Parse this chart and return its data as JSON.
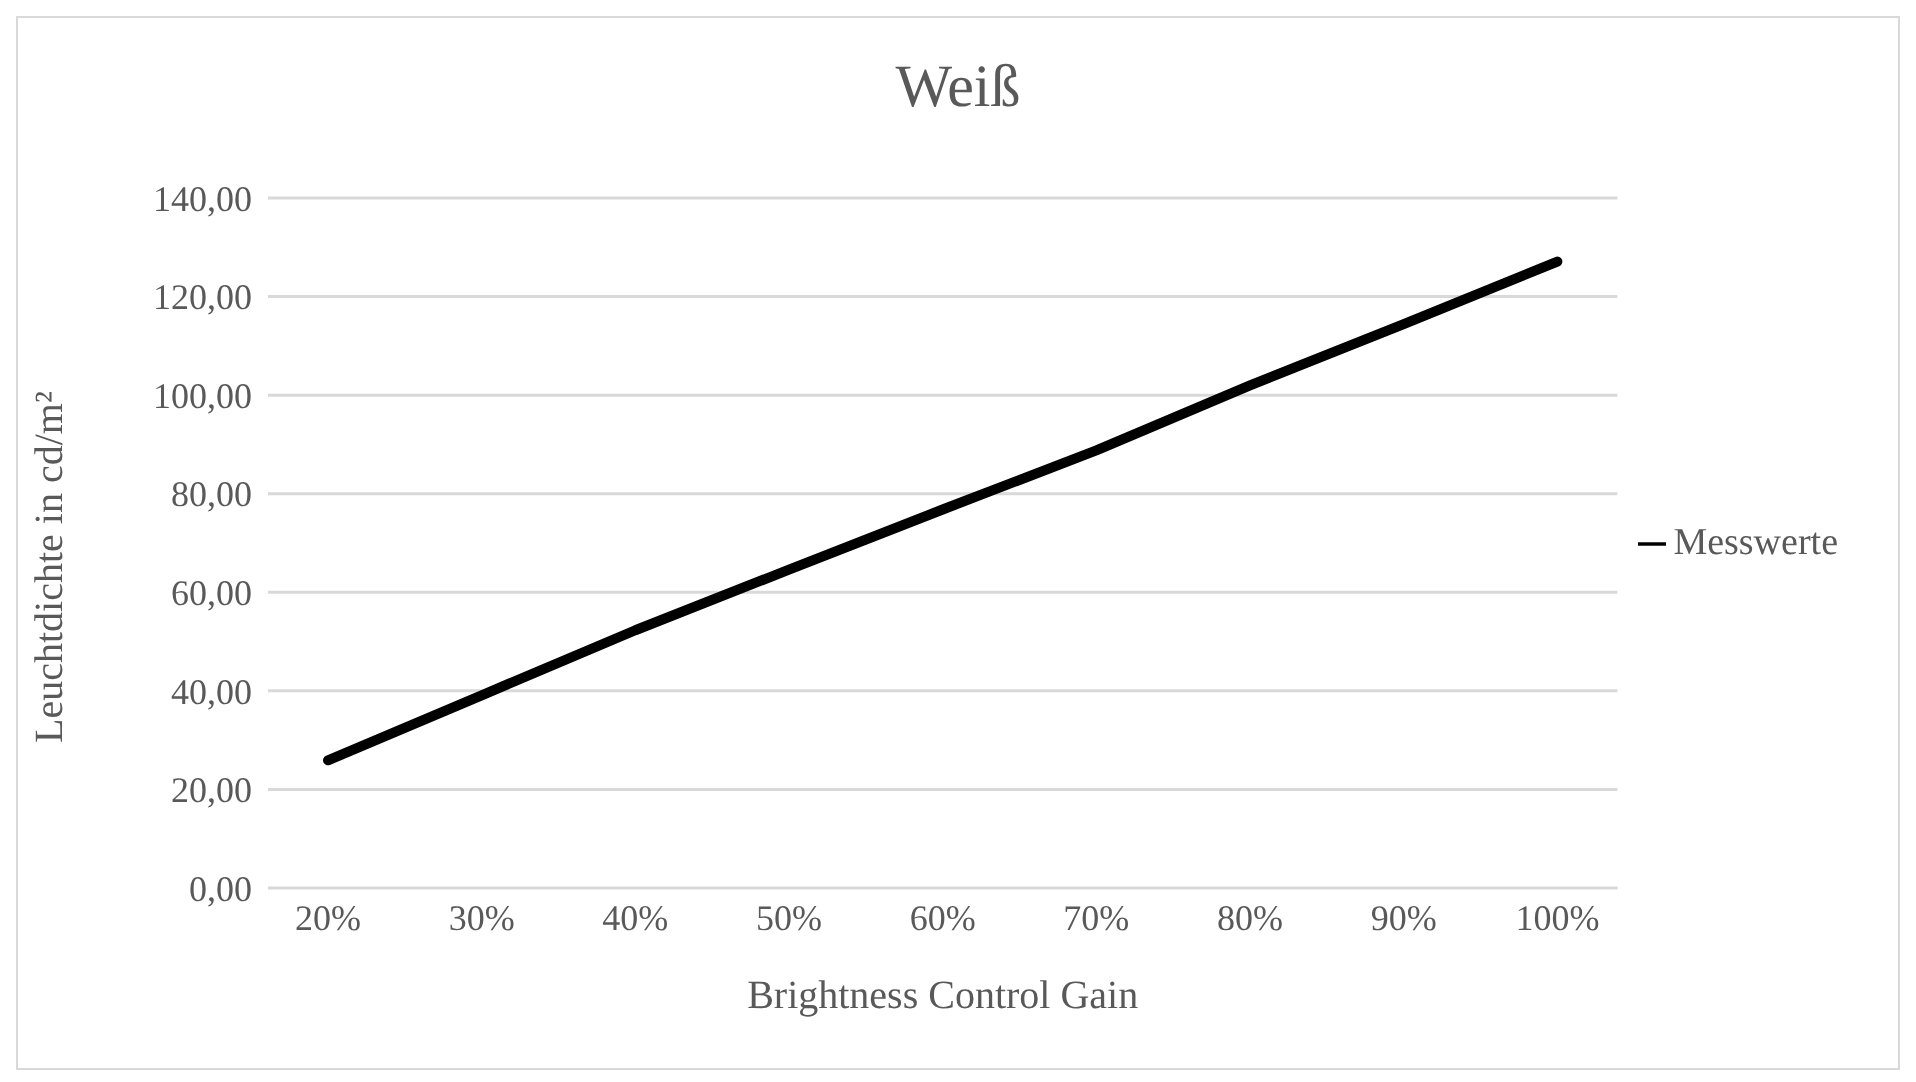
{
  "chart_data": {
    "type": "line",
    "title": "Weiß",
    "xlabel": "Brightness Control Gain",
    "ylabel": "Leuchtdichte in cd/m²",
    "categories": [
      "20%",
      "30%",
      "40%",
      "50%",
      "60%",
      "70%",
      "80%",
      "90%",
      "100%"
    ],
    "series": [
      {
        "name": "Messwerte",
        "color": "#000000",
        "values": [
          25.9,
          39.1,
          52.3,
          64.6,
          76.8,
          88.8,
          102.0,
          114.4,
          127.1
        ]
      }
    ],
    "ylim": [
      0,
      140
    ],
    "yticks": [
      {
        "value": 0,
        "label": "0,00"
      },
      {
        "value": 20,
        "label": "20,00"
      },
      {
        "value": 40,
        "label": "40,00"
      },
      {
        "value": 60,
        "label": "60,00"
      },
      {
        "value": 80,
        "label": "80,00"
      },
      {
        "value": 100,
        "label": "100,00"
      },
      {
        "value": 120,
        "label": "120,00"
      },
      {
        "value": 140,
        "label": "140,00"
      }
    ],
    "grid": "y",
    "legend": "right",
    "marker": "none",
    "line_style": "solid"
  }
}
